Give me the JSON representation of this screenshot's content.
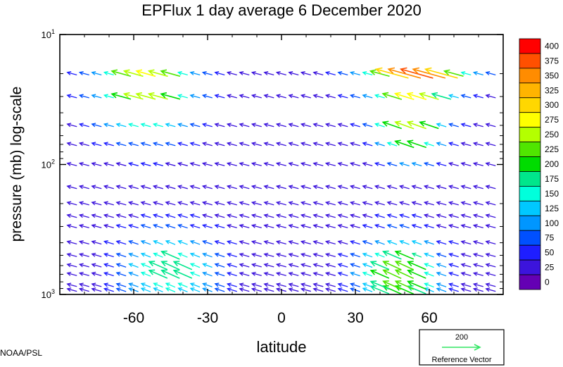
{
  "chart_data": {
    "type": "vector-field",
    "title": "EPFlux  1 day average  6 December 2020",
    "xlabel": "latitude",
    "ylabel": "pressure (mb)  log-scale",
    "x_range": [
      -90,
      90
    ],
    "y_range": [
      1000,
      10
    ],
    "y_scale": "log",
    "x_ticks": [
      -60,
      -30,
      0,
      30,
      60
    ],
    "x_tick_labels": [
      "-60",
      "-30",
      "0",
      "30",
      "60"
    ],
    "y_ticks": [
      {
        "value": 10,
        "base": "10",
        "exp": "1"
      },
      {
        "value": 100,
        "base": "10",
        "exp": "2"
      },
      {
        "value": 1000,
        "base": "10",
        "exp": "3"
      }
    ],
    "colorbar": {
      "levels": [
        "400",
        "375",
        "350",
        "325",
        "300",
        "275",
        "250",
        "225",
        "200",
        "175",
        "150",
        "125",
        "100",
        "75",
        "50",
        "25",
        "0"
      ],
      "colors": [
        "#ff0000",
        "#ff5000",
        "#ff8c00",
        "#ffb400",
        "#ffd700",
        "#ffff00",
        "#b4ff00",
        "#50e600",
        "#00dc00",
        "#00e68c",
        "#00ffdc",
        "#00c8ff",
        "#0096ff",
        "#0050ff",
        "#1e1eff",
        "#3c14dc",
        "#6400b4"
      ]
    },
    "reference_vector": {
      "value": "200",
      "label": "Reference Vector",
      "color": "#32e664"
    },
    "lats": [
      -85,
      -80,
      -75,
      -70,
      -65,
      -60,
      -55,
      -50,
      -45,
      -40,
      -35,
      -30,
      -25,
      -20,
      -15,
      -10,
      -5,
      0,
      5,
      10,
      15,
      20,
      25,
      30,
      35,
      40,
      45,
      50,
      55,
      60,
      65,
      70,
      75,
      80,
      85
    ],
    "levels_mb": [
      1000,
      925,
      850,
      700,
      600,
      500,
      400,
      300,
      250,
      200,
      150,
      100,
      70,
      50,
      30,
      20,
      10
    ]
  },
  "footer": {
    "credit": "NOAA/PSL"
  }
}
